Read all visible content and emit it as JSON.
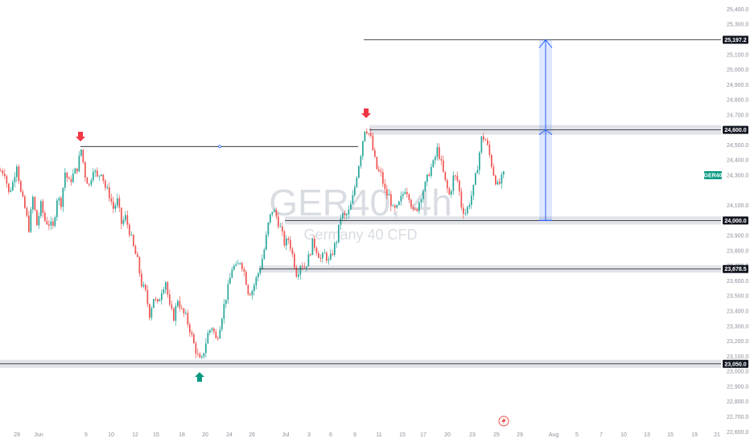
{
  "chart_data": {
    "type": "candlestick",
    "symbol_watermark": "GER40, 4h",
    "name_watermark": "Germany 40 CFD",
    "symbol_label": "GER40",
    "y_ticks": [
      "25,400.0",
      "25,300.0",
      "25,200.0",
      "25,100.0",
      "25,000.0",
      "24,900.0",
      "24,800.0",
      "24,700.0",
      "24,500.0",
      "24,400.0",
      "24,300.0",
      "24,100.0",
      "23,900.0",
      "23,800.0",
      "23,700.0",
      "23,600.0",
      "23,500.0",
      "23,400.0",
      "23,300.0",
      "23,200.0",
      "23,100.0",
      "23,000.0",
      "22,900.0",
      "22,800.0",
      "22,700.0",
      "22,600.0"
    ],
    "x_ticks": [
      "29",
      "Jun",
      "5",
      "10",
      "12",
      "15",
      "18",
      "20",
      "24",
      "26",
      "Jul",
      "3",
      "6",
      "9",
      "11",
      "15",
      "17",
      "20",
      "23",
      "25",
      "29",
      "Aug",
      "5",
      "7",
      "10",
      "13",
      "15",
      "19",
      "21"
    ],
    "level_labels": {
      "target": "25,197.2",
      "resistance": "24,600.0",
      "support": "24,000.0",
      "mid_support": "23,678.5",
      "low": "23,050.0"
    },
    "levels": {
      "target": 25197.2,
      "resistance": 24600,
      "support": 24000,
      "mid_support": 23678.5,
      "low": 23050
    },
    "colors": {
      "up": "#26a69a",
      "down": "#ef5350",
      "zone": "#dcdee3",
      "measure": "#2962ff",
      "badge": "#089981",
      "arrow_down": "#f23645",
      "arrow_up": "#089981"
    },
    "series_path": [
      [
        0,
        24330
      ],
      [
        5,
        24320
      ],
      [
        10,
        24180
      ],
      [
        15,
        24250
      ],
      [
        20,
        24380
      ],
      [
        25,
        24180
      ],
      [
        30,
        24080
      ],
      [
        35,
        23950
      ],
      [
        40,
        24150
      ],
      [
        45,
        23970
      ],
      [
        50,
        24100
      ],
      [
        55,
        24000
      ],
      [
        60,
        23980
      ],
      [
        65,
        23950
      ],
      [
        70,
        24150
      ],
      [
        75,
        24120
      ],
      [
        80,
        24320
      ],
      [
        85,
        24250
      ],
      [
        90,
        24300
      ],
      [
        95,
        24350
      ],
      [
        100,
        24470
      ],
      [
        105,
        24300
      ],
      [
        110,
        24230
      ],
      [
        115,
        24350
      ],
      [
        120,
        24280
      ],
      [
        125,
        24330
      ],
      [
        130,
        24220
      ],
      [
        135,
        24170
      ],
      [
        140,
        24080
      ],
      [
        145,
        24130
      ],
      [
        150,
        23980
      ],
      [
        155,
        24020
      ],
      [
        160,
        23930
      ],
      [
        165,
        23820
      ],
      [
        170,
        23730
      ],
      [
        175,
        23580
      ],
      [
        180,
        23520
      ],
      [
        185,
        23380
      ],
      [
        190,
        23490
      ],
      [
        195,
        23440
      ],
      [
        200,
        23540
      ],
      [
        205,
        23600
      ],
      [
        210,
        23420
      ],
      [
        215,
        23360
      ],
      [
        220,
        23480
      ],
      [
        225,
        23400
      ],
      [
        230,
        23360
      ],
      [
        235,
        23280
      ],
      [
        240,
        23180
      ],
      [
        245,
        23100
      ],
      [
        249,
        23050
      ],
      [
        253,
        23150
      ],
      [
        258,
        23260
      ],
      [
        263,
        23300
      ],
      [
        268,
        23200
      ],
      [
        273,
        23320
      ],
      [
        278,
        23450
      ],
      [
        283,
        23560
      ],
      [
        288,
        23700
      ],
      [
        293,
        23680
      ],
      [
        298,
        23740
      ],
      [
        303,
        23650
      ],
      [
        308,
        23520
      ],
      [
        313,
        23540
      ],
      [
        318,
        23620
      ],
      [
        323,
        23700
      ],
      [
        328,
        23820
      ],
      [
        333,
        23990
      ],
      [
        338,
        24080
      ],
      [
        343,
        24020
      ],
      [
        348,
        23940
      ],
      [
        353,
        23840
      ],
      [
        358,
        23880
      ],
      [
        363,
        23760
      ],
      [
        368,
        23640
      ],
      [
        373,
        23720
      ],
      [
        378,
        23690
      ],
      [
        383,
        23760
      ],
      [
        388,
        23860
      ],
      [
        393,
        23800
      ],
      [
        398,
        23740
      ],
      [
        403,
        23780
      ],
      [
        408,
        23720
      ],
      [
        413,
        23800
      ],
      [
        418,
        23880
      ],
      [
        423,
        24040
      ],
      [
        428,
        24020
      ],
      [
        433,
        24060
      ],
      [
        438,
        24160
      ],
      [
        443,
        24320
      ],
      [
        448,
        24460
      ],
      [
        452,
        24610
      ],
      [
        456,
        24600
      ],
      [
        460,
        24540
      ],
      [
        464,
        24420
      ],
      [
        468,
        24330
      ],
      [
        473,
        24300
      ],
      [
        478,
        24180
      ],
      [
        483,
        24160
      ],
      [
        488,
        24060
      ],
      [
        493,
        24080
      ],
      [
        498,
        24150
      ],
      [
        503,
        24220
      ],
      [
        508,
        24160
      ],
      [
        513,
        24040
      ],
      [
        518,
        24090
      ],
      [
        523,
        24180
      ],
      [
        528,
        24240
      ],
      [
        533,
        24330
      ],
      [
        538,
        24380
      ],
      [
        543,
        24480
      ],
      [
        548,
        24360
      ],
      [
        553,
        24240
      ],
      [
        558,
        24160
      ],
      [
        563,
        24300
      ],
      [
        568,
        24260
      ],
      [
        573,
        24080
      ],
      [
        578,
        24050
      ],
      [
        583,
        24130
      ],
      [
        588,
        24220
      ],
      [
        593,
        24380
      ],
      [
        598,
        24560
      ],
      [
        603,
        24530
      ],
      [
        608,
        24420
      ],
      [
        613,
        24300
      ],
      [
        618,
        24220
      ],
      [
        622,
        24270
      ],
      [
        626,
        24310
      ]
    ]
  }
}
